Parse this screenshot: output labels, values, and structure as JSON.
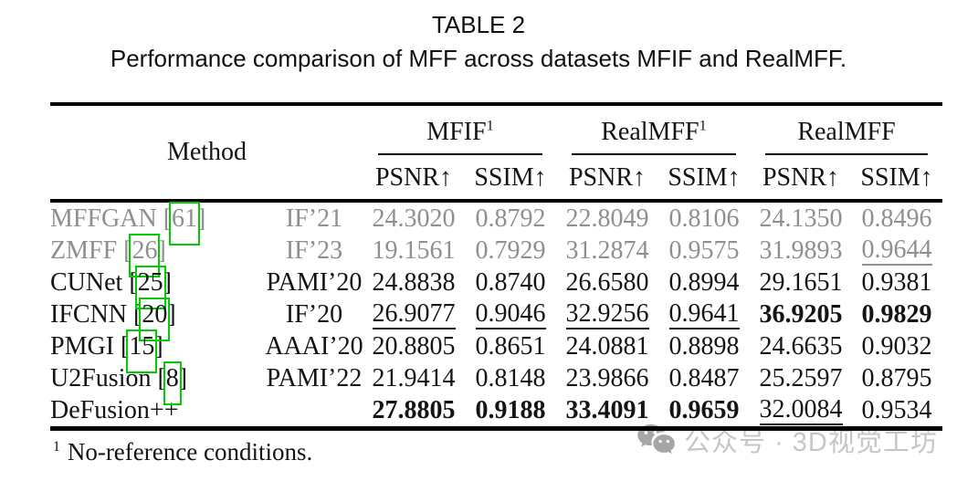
{
  "caption": {
    "title": "TABLE 2",
    "subtitle": "Performance comparison of MFF across datasets MFIF and RealMFF."
  },
  "table": {
    "method_header": "Method",
    "groups": [
      {
        "label": "MFIF",
        "sup": "1"
      },
      {
        "label": "RealMFF",
        "sup": "1"
      },
      {
        "label": "RealMFF",
        "sup": ""
      }
    ],
    "metric_headers": [
      "PSNR↑",
      "SSIM↑",
      "PSNR↑",
      "SSIM↑",
      "PSNR↑",
      "SSIM↑"
    ],
    "rows": [
      {
        "method": "MFFGAN",
        "cite": "61",
        "venue": "IF’21",
        "gray": true,
        "values": [
          {
            "v": "24.3020",
            "s": ""
          },
          {
            "v": "0.8792",
            "s": ""
          },
          {
            "v": "22.8049",
            "s": ""
          },
          {
            "v": "0.8106",
            "s": ""
          },
          {
            "v": "24.1350",
            "s": ""
          },
          {
            "v": "0.8496",
            "s": ""
          }
        ]
      },
      {
        "method": "ZMFF",
        "cite": "26",
        "venue": "IF’23",
        "gray": true,
        "values": [
          {
            "v": "19.1561",
            "s": ""
          },
          {
            "v": "0.7929",
            "s": ""
          },
          {
            "v": "31.2874",
            "s": ""
          },
          {
            "v": "0.9575",
            "s": ""
          },
          {
            "v": "31.9893",
            "s": ""
          },
          {
            "v": "0.9644",
            "s": "u"
          }
        ]
      },
      {
        "method": "CUNet",
        "cite": "25",
        "venue": "PAMI’20",
        "gray": false,
        "values": [
          {
            "v": "24.8838",
            "s": ""
          },
          {
            "v": "0.8740",
            "s": ""
          },
          {
            "v": "26.6580",
            "s": ""
          },
          {
            "v": "0.8994",
            "s": ""
          },
          {
            "v": "29.1651",
            "s": ""
          },
          {
            "v": "0.9381",
            "s": ""
          }
        ]
      },
      {
        "method": "IFCNN",
        "cite": "20",
        "venue": "IF’20",
        "gray": false,
        "values": [
          {
            "v": "26.9077",
            "s": "u"
          },
          {
            "v": "0.9046",
            "s": "u"
          },
          {
            "v": "32.9256",
            "s": "u"
          },
          {
            "v": "0.9641",
            "s": "u"
          },
          {
            "v": "36.9205",
            "s": "b"
          },
          {
            "v": "0.9829",
            "s": "b"
          }
        ]
      },
      {
        "method": "PMGI",
        "cite": "15",
        "venue": "AAAI’20",
        "gray": false,
        "values": [
          {
            "v": "20.8805",
            "s": ""
          },
          {
            "v": "0.8651",
            "s": ""
          },
          {
            "v": "24.0881",
            "s": ""
          },
          {
            "v": "0.8898",
            "s": ""
          },
          {
            "v": "24.6635",
            "s": ""
          },
          {
            "v": "0.9032",
            "s": ""
          }
        ]
      },
      {
        "method": "U2Fusion",
        "cite": "8",
        "venue": "PAMI’22",
        "gray": false,
        "values": [
          {
            "v": "21.9414",
            "s": ""
          },
          {
            "v": "0.8148",
            "s": ""
          },
          {
            "v": "23.9866",
            "s": ""
          },
          {
            "v": "0.8487",
            "s": ""
          },
          {
            "v": "25.2597",
            "s": ""
          },
          {
            "v": "0.8795",
            "s": ""
          }
        ]
      },
      {
        "method": "DeFusion++",
        "cite": "",
        "venue": "",
        "gray": false,
        "values": [
          {
            "v": "27.8805",
            "s": "b"
          },
          {
            "v": "0.9188",
            "s": "b"
          },
          {
            "v": "33.4091",
            "s": "b"
          },
          {
            "v": "0.9659",
            "s": "b"
          },
          {
            "v": "32.0084",
            "s": "u"
          },
          {
            "v": "0.9534",
            "s": ""
          }
        ]
      }
    ]
  },
  "footnote": {
    "sup": "1",
    "text": "No-reference conditions."
  },
  "watermark": {
    "icon": "wechat-icon",
    "text": "公众号 · 3D视觉工坊"
  },
  "colors": {
    "link_box_green": "#00cc00",
    "muted_row_gray": "#8f8f8f",
    "watermark_gray": "#c6c6c6",
    "text_black": "#141414"
  }
}
